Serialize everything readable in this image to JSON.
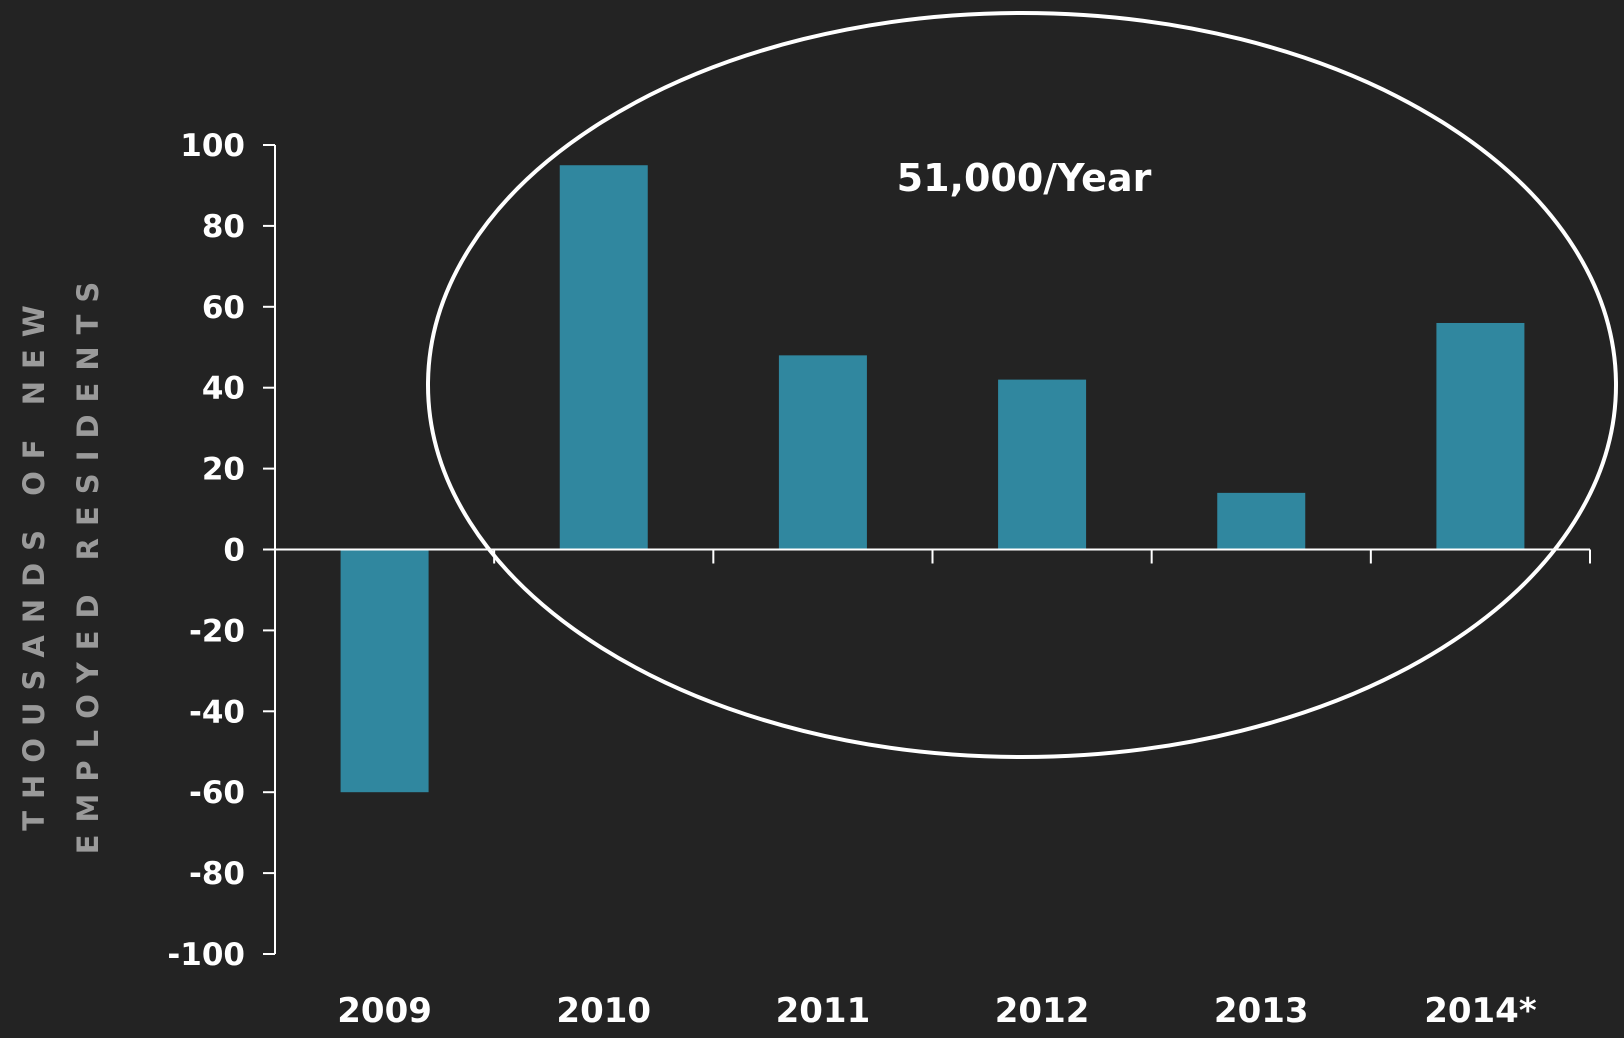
{
  "chart_data": {
    "type": "bar",
    "categories": [
      "2009",
      "2010",
      "2011",
      "2012",
      "2013",
      "2014*"
    ],
    "values": [
      -60,
      95,
      48,
      42,
      14,
      56
    ],
    "ylabel_lines": [
      "THOUSANDS OF NEW",
      "EMPLOYED RESIDENTS"
    ],
    "ylim": [
      -100,
      100
    ],
    "yticks": [
      100,
      80,
      60,
      40,
      20,
      0,
      -20,
      -40,
      -60,
      -80,
      -100
    ],
    "annotation": "51,000/Year",
    "grid": false,
    "legend": "none",
    "colors": {
      "bar": "#30879F",
      "axis": "#ffffff",
      "background": "#232323",
      "ylabel": "#9A9A9A"
    }
  }
}
